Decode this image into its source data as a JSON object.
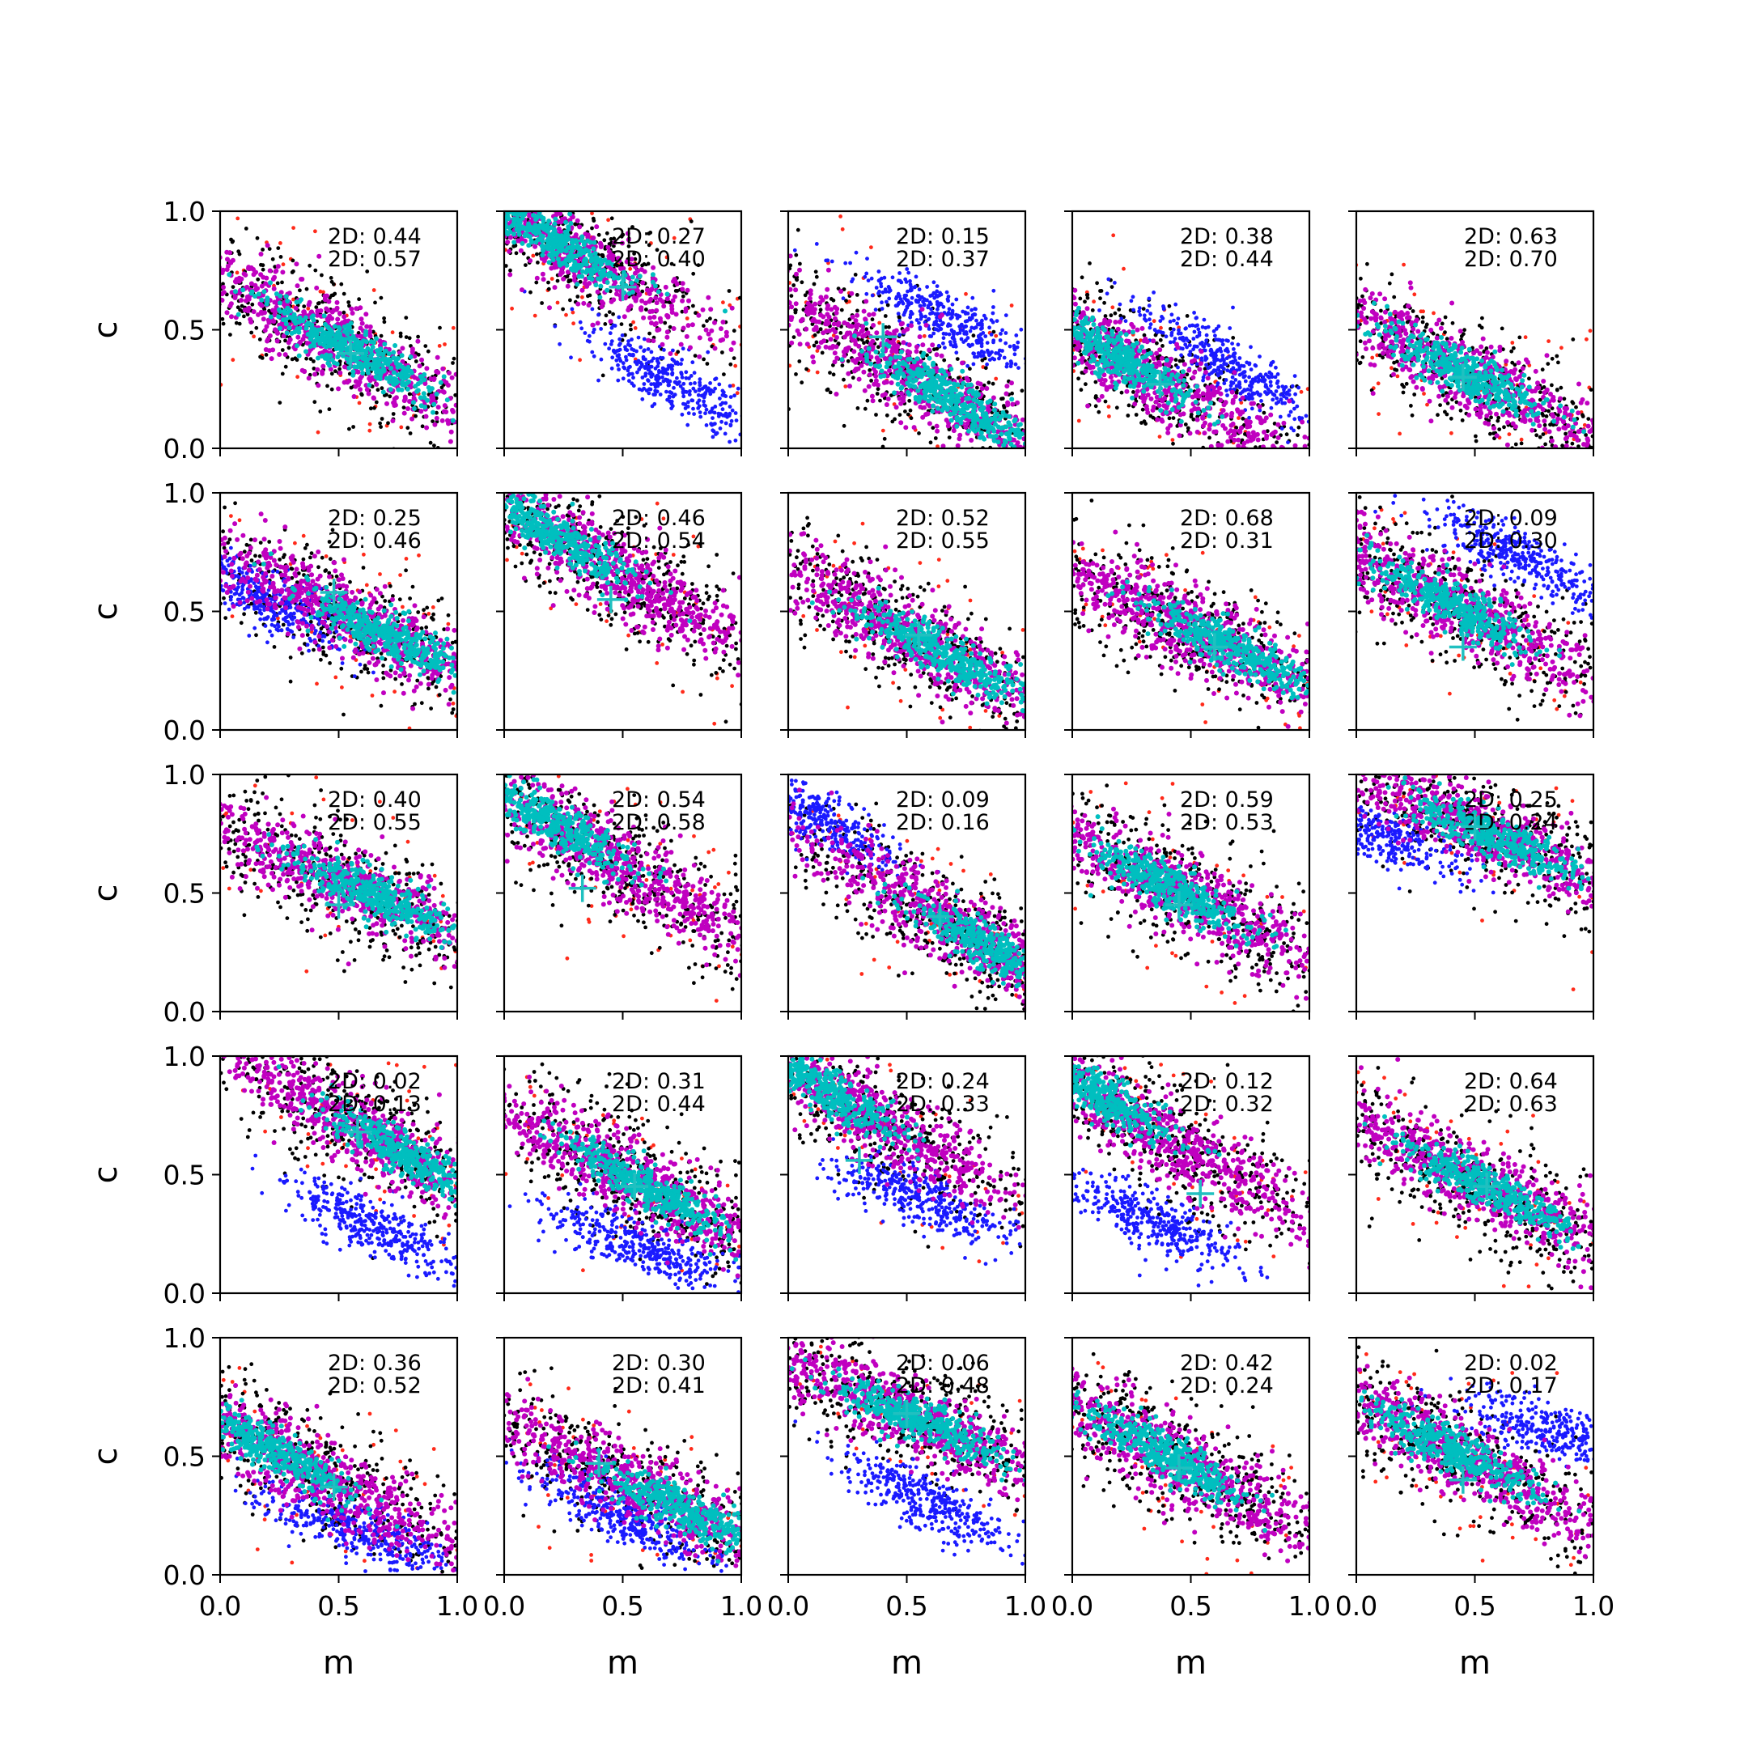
{
  "chart_data": {
    "type": "scatter",
    "rows": 5,
    "cols": 5,
    "xlabel": "m",
    "ylabel": "c",
    "xlim": [
      0,
      1
    ],
    "ylim": [
      0,
      1
    ],
    "xticks": [
      "0.0",
      "0.5",
      "1.0"
    ],
    "yticks": [
      "0.0",
      "0.5",
      "1.0"
    ],
    "colors": {
      "outer_sample": "#000000",
      "outlier": "#ff2a1a",
      "alternate": "#1a1aff",
      "region_outer": "#c000c0",
      "region_inner": "#00bfbf",
      "marker": "#20c0c0"
    },
    "panels": [
      {
        "stat1": "2D: 0.44",
        "stat2": "2D: 0.57",
        "slope": -0.55,
        "intercept": 0.72,
        "center": 0.45,
        "core": 0.55,
        "marker": [
          0.55,
          0.4
        ]
      },
      {
        "stat1": "2D: 0.27",
        "stat2": "2D: 0.40",
        "slope": -0.6,
        "intercept": 1.0,
        "center": 0.2,
        "core": 0.2,
        "marker": [
          0.5,
          0.68
        ],
        "alt": {
          "cx": 0.7,
          "cy": 0.28,
          "slope": -0.6
        }
      },
      {
        "stat1": "2D: 0.15",
        "stat2": "2D: 0.37",
        "slope": -0.6,
        "intercept": 0.62,
        "center": 0.5,
        "core": 0.7,
        "marker": [
          0.4,
          0.47
        ],
        "alt": {
          "cx": 0.65,
          "cy": 0.55,
          "slope": -0.5
        }
      },
      {
        "stat1": "2D: 0.38",
        "stat2": "2D: 0.44",
        "slope": -0.6,
        "intercept": 0.5,
        "center": 0.3,
        "core": 0.18,
        "marker": [
          0.37,
          0.27
        ],
        "alt": {
          "cx": 0.65,
          "cy": 0.35,
          "slope": -0.6
        }
      },
      {
        "stat1": "2D: 0.63",
        "stat2": "2D: 0.70",
        "slope": -0.5,
        "intercept": 0.55,
        "center": 0.5,
        "core": 0.45,
        "marker": [
          0.45,
          0.3
        ]
      },
      {
        "stat1": "2D: 0.25",
        "stat2": "2D: 0.46",
        "slope": -0.5,
        "intercept": 0.75,
        "center": 0.55,
        "core": 0.7,
        "marker": [
          0.48,
          0.58
        ],
        "alt": {
          "cx": 0.2,
          "cy": 0.55,
          "slope": -0.5
        }
      },
      {
        "stat1": "2D: 0.46",
        "stat2": "2D: 0.54",
        "slope": -0.6,
        "intercept": 0.95,
        "center": 0.45,
        "core": 0.2,
        "marker": [
          0.45,
          0.55
        ]
      },
      {
        "stat1": "2D: 0.52",
        "stat2": "2D: 0.55",
        "slope": -0.55,
        "intercept": 0.68,
        "center": 0.5,
        "core": 0.65,
        "marker": [
          0.55,
          0.4
        ]
      },
      {
        "stat1": "2D: 0.68",
        "stat2": "2D: 0.31",
        "slope": -0.5,
        "intercept": 0.68,
        "center": 0.5,
        "core": 0.65,
        "marker": [
          0.6,
          0.35
        ]
      },
      {
        "stat1": "2D: 0.09",
        "stat2": "2D: 0.30",
        "slope": -0.55,
        "intercept": 0.75,
        "center": 0.4,
        "core": 0.4,
        "marker": [
          0.45,
          0.35
        ],
        "alt": {
          "cx": 0.7,
          "cy": 0.72,
          "slope": -0.5
        }
      },
      {
        "stat1": "2D: 0.40",
        "stat2": "2D: 0.55",
        "slope": -0.45,
        "intercept": 0.78,
        "center": 0.5,
        "core": 0.65,
        "marker": [
          0.5,
          0.45
        ]
      },
      {
        "stat1": "2D: 0.54",
        "stat2": "2D: 0.58",
        "slope": -0.6,
        "intercept": 0.92,
        "center": 0.45,
        "core": 0.2,
        "marker": [
          0.33,
          0.52
        ]
      },
      {
        "stat1": "2D: 0.09",
        "stat2": "2D: 0.16",
        "slope": -0.6,
        "intercept": 0.78,
        "center": 0.7,
        "core": 0.85,
        "marker": [
          0.64,
          0.4
        ],
        "alt": {
          "cx": 0.12,
          "cy": 0.82,
          "slope": -0.6
        }
      },
      {
        "stat1": "2D: 0.59",
        "stat2": "2D: 0.53",
        "slope": -0.55,
        "intercept": 0.75,
        "center": 0.45,
        "core": 0.4,
        "marker": [
          0.45,
          0.45
        ]
      },
      {
        "stat1": "2D: 0.25",
        "stat2": "2D: 0.24",
        "slope": -0.45,
        "intercept": 1.0,
        "center": 0.5,
        "core": 0.6,
        "marker": [
          0.5,
          0.78
        ],
        "alt": {
          "cx": 0.08,
          "cy": 0.75,
          "slope": -0.4
        }
      },
      {
        "stat1": "2D: 0.02",
        "stat2": "2D: 0.13",
        "slope": -0.6,
        "intercept": 1.05,
        "center": 0.6,
        "core": 0.8,
        "marker": [
          0.58,
          0.68
        ],
        "alt": {
          "cx": 0.65,
          "cy": 0.28,
          "slope": -0.5
        }
      },
      {
        "stat1": "2D: 0.31",
        "stat2": "2D: 0.44",
        "slope": -0.55,
        "intercept": 0.78,
        "center": 0.55,
        "core": 0.6,
        "marker": [
          0.55,
          0.45
        ],
        "alt": {
          "cx": 0.55,
          "cy": 0.2,
          "slope": -0.4
        }
      },
      {
        "stat1": "2D: 0.24",
        "stat2": "2D: 0.33",
        "slope": -0.6,
        "intercept": 0.95,
        "center": 0.3,
        "core": 0.15,
        "marker": [
          0.3,
          0.56
        ],
        "alt": {
          "cx": 0.55,
          "cy": 0.4,
          "slope": -0.4
        }
      },
      {
        "stat1": "2D: 0.12",
        "stat2": "2D: 0.32",
        "slope": -0.6,
        "intercept": 0.9,
        "center": 0.4,
        "core": 0.1,
        "marker": [
          0.54,
          0.42
        ],
        "alt": {
          "cx": 0.35,
          "cy": 0.3,
          "slope": -0.5
        }
      },
      {
        "stat1": "2D: 0.64",
        "stat2": "2D: 0.63",
        "slope": -0.5,
        "intercept": 0.72,
        "center": 0.5,
        "core": 0.55,
        "marker": [
          0.55,
          0.45
        ]
      },
      {
        "stat1": "2D: 0.36",
        "stat2": "2D: 0.52",
        "slope": -0.55,
        "intercept": 0.65,
        "center": 0.4,
        "core": 0.2,
        "marker": [
          0.48,
          0.37
        ],
        "alt": {
          "cx": 0.55,
          "cy": 0.2,
          "slope": -0.4
        }
      },
      {
        "stat1": "2D: 0.30",
        "stat2": "2D: 0.41",
        "slope": -0.5,
        "intercept": 0.65,
        "center": 0.6,
        "core": 0.75,
        "marker": [
          0.4,
          0.47
        ],
        "alt": {
          "cx": 0.5,
          "cy": 0.25,
          "slope": -0.5
        }
      },
      {
        "stat1": "2D: 0.06",
        "stat2": "2D: 0.48",
        "slope": -0.45,
        "intercept": 0.9,
        "center": 0.5,
        "core": 0.55,
        "marker": [
          0.5,
          0.68
        ],
        "alt": {
          "cx": 0.6,
          "cy": 0.3,
          "slope": -0.5
        }
      },
      {
        "stat1": "2D: 0.42",
        "stat2": "2D: 0.24",
        "slope": -0.55,
        "intercept": 0.72,
        "center": 0.45,
        "core": 0.4,
        "marker": [
          0.45,
          0.45
        ]
      },
      {
        "stat1": "2D: 0.02",
        "stat2": "2D: 0.17",
        "slope": -0.55,
        "intercept": 0.75,
        "center": 0.45,
        "core": 0.4,
        "marker": [
          0.45,
          0.4
        ],
        "alt": {
          "cx": 0.85,
          "cy": 0.6,
          "slope": -0.3
        }
      }
    ]
  }
}
